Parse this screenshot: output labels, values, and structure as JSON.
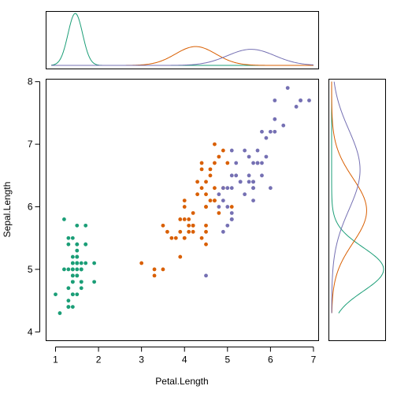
{
  "chart_data": {
    "type": "scatter",
    "xlabel": "Petal.Length",
    "ylabel": "Sepal.Length",
    "xlim": [
      0.78,
      7.12
    ],
    "ylim": [
      3.86,
      8.04
    ],
    "xticks": [
      "1",
      "2",
      "3",
      "4",
      "5",
      "6",
      "7"
    ],
    "yticks": [
      "4",
      "5",
      "6",
      "7",
      "8"
    ],
    "grid": false,
    "legend": "none",
    "marginals": {
      "top": "density of Petal.Length by group",
      "right": "density of Sepal.Length by group"
    },
    "series": [
      {
        "color": "#1B9E77",
        "x_density": {
          "mean": 1.46,
          "sd": 0.17
        },
        "y_density": {
          "mean": 5.0,
          "sd": 0.35
        },
        "points": [
          [
            1.4,
            5.1
          ],
          [
            1.4,
            4.9
          ],
          [
            1.3,
            4.7
          ],
          [
            1.5,
            4.6
          ],
          [
            1.4,
            5.0
          ],
          [
            1.7,
            5.4
          ],
          [
            1.4,
            4.6
          ],
          [
            1.5,
            5.0
          ],
          [
            1.4,
            4.4
          ],
          [
            1.5,
            4.9
          ],
          [
            1.5,
            5.4
          ],
          [
            1.6,
            4.8
          ],
          [
            1.4,
            4.8
          ],
          [
            1.1,
            4.3
          ],
          [
            1.2,
            5.8
          ],
          [
            1.5,
            5.7
          ],
          [
            1.3,
            5.4
          ],
          [
            1.4,
            5.1
          ],
          [
            1.7,
            5.7
          ],
          [
            1.5,
            5.1
          ],
          [
            1.7,
            5.4
          ],
          [
            1.5,
            5.1
          ],
          [
            1.0,
            4.6
          ],
          [
            1.7,
            5.1
          ],
          [
            1.9,
            4.8
          ],
          [
            1.6,
            5.0
          ],
          [
            1.6,
            5.0
          ],
          [
            1.5,
            5.2
          ],
          [
            1.4,
            5.2
          ],
          [
            1.6,
            4.7
          ],
          [
            1.6,
            4.8
          ],
          [
            1.5,
            5.4
          ],
          [
            1.5,
            5.2
          ],
          [
            1.4,
            5.5
          ],
          [
            1.5,
            4.9
          ],
          [
            1.2,
            5.0
          ],
          [
            1.3,
            5.5
          ],
          [
            1.4,
            4.9
          ],
          [
            1.3,
            4.4
          ],
          [
            1.5,
            5.1
          ],
          [
            1.3,
            5.0
          ],
          [
            1.3,
            4.5
          ],
          [
            1.3,
            4.4
          ],
          [
            1.6,
            5.0
          ],
          [
            1.9,
            5.1
          ],
          [
            1.4,
            4.8
          ],
          [
            1.6,
            5.1
          ],
          [
            1.4,
            4.6
          ],
          [
            1.5,
            5.3
          ],
          [
            1.4,
            5.0
          ]
        ]
      },
      {
        "color": "#D95F02",
        "x_density": {
          "mean": 4.26,
          "sd": 0.47
        },
        "y_density": {
          "mean": 5.94,
          "sd": 0.52
        },
        "points": [
          [
            4.7,
            7.0
          ],
          [
            4.5,
            6.4
          ],
          [
            4.9,
            6.9
          ],
          [
            4.0,
            5.5
          ],
          [
            4.6,
            6.5
          ],
          [
            4.5,
            5.7
          ],
          [
            4.7,
            6.3
          ],
          [
            3.3,
            4.9
          ],
          [
            4.6,
            6.6
          ],
          [
            3.9,
            5.2
          ],
          [
            3.5,
            5.0
          ],
          [
            4.2,
            5.9
          ],
          [
            4.0,
            6.0
          ],
          [
            4.7,
            6.1
          ],
          [
            3.6,
            5.6
          ],
          [
            4.4,
            6.7
          ],
          [
            4.5,
            5.6
          ],
          [
            4.1,
            5.8
          ],
          [
            4.5,
            6.2
          ],
          [
            3.9,
            5.6
          ],
          [
            4.8,
            5.9
          ],
          [
            4.0,
            6.1
          ],
          [
            4.9,
            6.3
          ],
          [
            4.7,
            6.1
          ],
          [
            4.3,
            6.4
          ],
          [
            4.4,
            6.6
          ],
          [
            4.8,
            6.8
          ],
          [
            5.0,
            6.7
          ],
          [
            4.5,
            6.0
          ],
          [
            3.5,
            5.7
          ],
          [
            3.8,
            5.5
          ],
          [
            3.7,
            5.5
          ],
          [
            3.9,
            5.8
          ],
          [
            5.1,
            6.0
          ],
          [
            4.5,
            5.4
          ],
          [
            4.5,
            6.0
          ],
          [
            4.7,
            6.7
          ],
          [
            4.4,
            6.3
          ],
          [
            4.1,
            5.6
          ],
          [
            4.0,
            5.5
          ],
          [
            4.4,
            5.5
          ],
          [
            4.6,
            6.1
          ],
          [
            4.0,
            5.8
          ],
          [
            3.3,
            5.0
          ],
          [
            4.2,
            5.6
          ],
          [
            4.2,
            5.7
          ],
          [
            4.2,
            5.7
          ],
          [
            4.3,
            6.2
          ],
          [
            3.0,
            5.1
          ],
          [
            4.1,
            5.7
          ]
        ]
      },
      {
        "color": "#7570B3",
        "x_density": {
          "mean": 5.55,
          "sd": 0.55
        },
        "y_density": {
          "mean": 6.59,
          "sd": 0.64
        },
        "points": [
          [
            6.0,
            6.3
          ],
          [
            5.1,
            5.8
          ],
          [
            5.9,
            7.1
          ],
          [
            5.6,
            6.3
          ],
          [
            5.8,
            6.5
          ],
          [
            6.6,
            7.6
          ],
          [
            4.5,
            4.9
          ],
          [
            6.3,
            7.3
          ],
          [
            5.8,
            6.7
          ],
          [
            6.1,
            7.2
          ],
          [
            5.1,
            6.5
          ],
          [
            5.3,
            6.4
          ],
          [
            5.5,
            6.8
          ],
          [
            5.0,
            5.7
          ],
          [
            5.1,
            5.8
          ],
          [
            5.3,
            6.4
          ],
          [
            5.5,
            6.5
          ],
          [
            6.7,
            7.7
          ],
          [
            6.9,
            7.7
          ],
          [
            5.0,
            6.0
          ],
          [
            5.7,
            6.9
          ],
          [
            4.9,
            5.6
          ],
          [
            6.7,
            7.7
          ],
          [
            4.9,
            6.3
          ],
          [
            5.7,
            6.7
          ],
          [
            6.0,
            7.2
          ],
          [
            4.8,
            6.2
          ],
          [
            4.9,
            6.1
          ],
          [
            5.6,
            6.4
          ],
          [
            5.8,
            7.2
          ],
          [
            6.1,
            7.4
          ],
          [
            6.4,
            7.9
          ],
          [
            5.6,
            6.4
          ],
          [
            5.1,
            6.3
          ],
          [
            5.6,
            6.1
          ],
          [
            6.1,
            7.7
          ],
          [
            5.6,
            6.3
          ],
          [
            5.5,
            6.4
          ],
          [
            4.8,
            6.0
          ],
          [
            5.4,
            6.9
          ],
          [
            5.6,
            6.7
          ],
          [
            5.1,
            6.9
          ],
          [
            5.1,
            5.8
          ],
          [
            5.9,
            6.8
          ],
          [
            5.7,
            6.7
          ],
          [
            5.2,
            6.7
          ],
          [
            5.0,
            6.3
          ],
          [
            5.2,
            6.5
          ],
          [
            5.4,
            6.2
          ],
          [
            5.1,
            5.9
          ]
        ]
      }
    ]
  }
}
